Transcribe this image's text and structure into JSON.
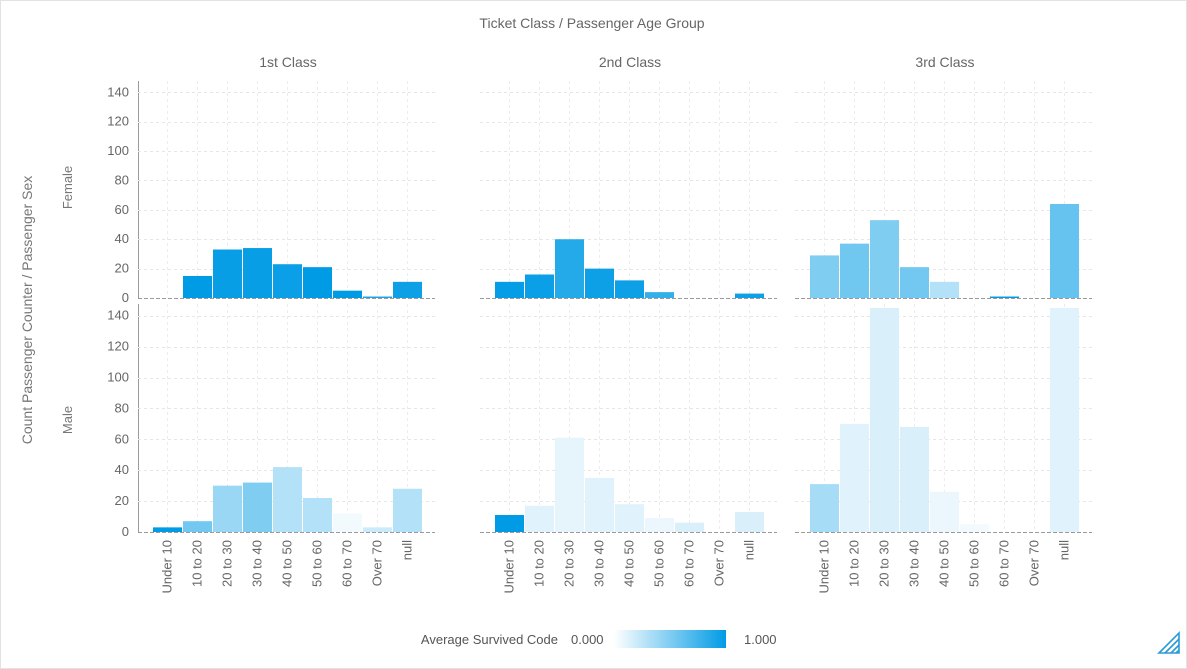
{
  "chart_data": {
    "type": "bar",
    "title": "Ticket Class / Passenger Age Group",
    "ylabel": "Count Passenger Counter / Passenger Sex",
    "ylim": [
      0,
      145
    ],
    "yticks": [
      0,
      20,
      40,
      60,
      80,
      100,
      120,
      140
    ],
    "grid": true,
    "column_facets": [
      "1st Class",
      "2nd Class",
      "3rd Class"
    ],
    "row_facets": [
      "Female",
      "Male"
    ],
    "categories": [
      "Under 10",
      "10 to 20",
      "20 to 30",
      "30 to 40",
      "40 to 50",
      "50 to 60",
      "60 to 70",
      "Over 70",
      "null"
    ],
    "color_scale": {
      "label": "Average Survived Code",
      "min_label": "0.000",
      "max_label": "1.000",
      "min_color": "#ffffff",
      "max_color": "#009be5"
    },
    "panels": [
      {
        "row": "Female",
        "column": "1st Class",
        "values": [
          null,
          15,
          33,
          34,
          23,
          21,
          5,
          1,
          11
        ],
        "survival": [
          null,
          1.0,
          0.97,
          0.97,
          0.96,
          1.0,
          1.0,
          0.9,
          0.95
        ]
      },
      {
        "row": "Female",
        "column": "2nd Class",
        "values": [
          11,
          16,
          40,
          20,
          12,
          4,
          null,
          null,
          3
        ],
        "survival": [
          0.98,
          0.96,
          0.86,
          0.95,
          0.95,
          0.8,
          null,
          null,
          0.95
        ]
      },
      {
        "row": "Female",
        "column": "3rd Class",
        "values": [
          29,
          37,
          53,
          21,
          11,
          null,
          1,
          null,
          64
        ],
        "survival": [
          0.5,
          0.56,
          0.5,
          0.55,
          0.3,
          null,
          1.0,
          null,
          0.6
        ]
      },
      {
        "row": "Male",
        "column": "1st Class",
        "values": [
          3,
          7,
          30,
          32,
          42,
          22,
          12,
          3,
          28
        ],
        "survival": [
          1.0,
          0.55,
          0.4,
          0.5,
          0.3,
          0.3,
          0.05,
          0.2,
          0.3
        ]
      },
      {
        "row": "Male",
        "column": "2nd Class",
        "values": [
          11,
          17,
          61,
          35,
          18,
          9,
          6,
          null,
          13
        ],
        "survival": [
          1.0,
          0.12,
          0.1,
          0.12,
          0.12,
          0.08,
          0.15,
          null,
          0.15
        ]
      },
      {
        "row": "Male",
        "column": "3rd Class",
        "values": [
          31,
          70,
          145,
          68,
          26,
          5,
          null,
          null,
          145
        ],
        "survival": [
          0.35,
          0.12,
          0.15,
          0.15,
          0.08,
          0.05,
          null,
          null,
          0.12
        ]
      }
    ]
  },
  "icons": {
    "corner": "resize-corner-icon"
  }
}
